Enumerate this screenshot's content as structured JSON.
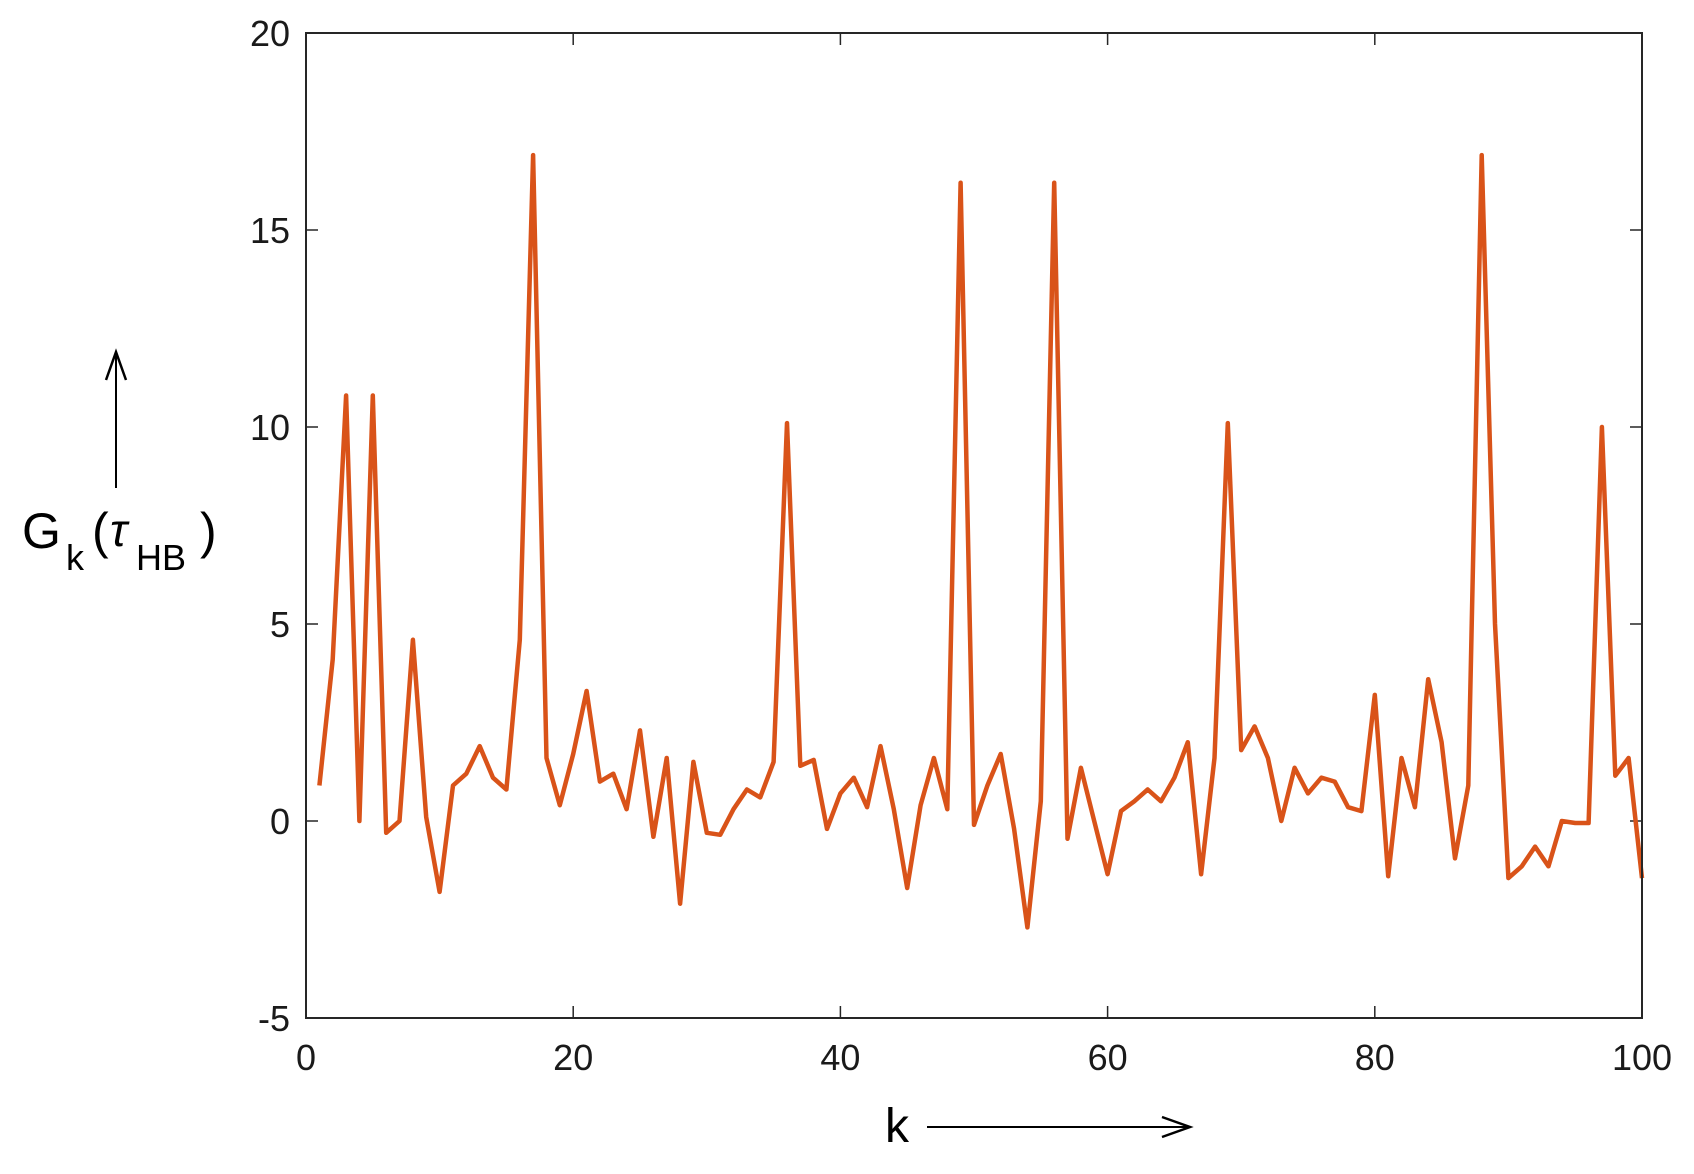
{
  "chart_data": {
    "type": "line",
    "xlabel": "k",
    "ylabel": {
      "main": "G",
      "sub": "k",
      "open": "(",
      "greek": "τ",
      "greek_sub": "HB",
      "close": ")"
    },
    "xlim": [
      0,
      100
    ],
    "ylim": [
      -5,
      20
    ],
    "x_ticks": [
      0,
      20,
      40,
      60,
      80,
      100
    ],
    "x_tick_labels": [
      "0",
      "20",
      "40",
      "60",
      "80",
      "100"
    ],
    "y_ticks": [
      -5,
      0,
      5,
      10,
      15,
      20
    ],
    "y_tick_labels": [
      "-5",
      "0",
      "5",
      "10",
      "15",
      "20"
    ],
    "grid": false,
    "series": [
      {
        "color": "#d95319",
        "x": [
          1,
          2,
          3,
          4,
          5,
          6,
          7,
          8,
          9,
          10,
          11,
          12,
          13,
          14,
          15,
          16,
          17,
          18,
          19,
          20,
          21,
          22,
          23,
          24,
          25,
          26,
          27,
          28,
          29,
          30,
          31,
          32,
          33,
          34,
          35,
          36,
          37,
          38,
          39,
          40,
          41,
          42,
          43,
          44,
          45,
          46,
          47,
          48,
          49,
          50,
          51,
          52,
          53,
          54,
          55,
          56,
          57,
          58,
          59,
          60,
          61,
          62,
          63,
          64,
          65,
          66,
          67,
          68,
          69,
          70,
          71,
          72,
          73,
          74,
          75,
          76,
          77,
          78,
          79,
          80,
          81,
          82,
          83,
          84,
          85,
          86,
          87,
          88,
          89,
          90,
          91,
          92,
          93,
          94,
          95,
          96,
          97,
          98,
          99,
          100
        ],
        "values": [
          0.9,
          4.1,
          10.8,
          0.0,
          10.8,
          -0.3,
          0.0,
          4.6,
          0.1,
          -1.8,
          0.9,
          1.2,
          1.9,
          1.1,
          0.8,
          4.6,
          16.9,
          1.6,
          0.4,
          1.7,
          3.3,
          1.0,
          1.2,
          0.3,
          2.3,
          -0.4,
          1.6,
          -2.1,
          1.5,
          -0.3,
          -0.35,
          0.3,
          0.8,
          0.6,
          1.5,
          10.1,
          1.4,
          1.55,
          -0.2,
          0.7,
          1.1,
          0.35,
          1.9,
          0.3,
          -1.7,
          0.4,
          1.6,
          0.3,
          16.2,
          -0.1,
          0.9,
          1.7,
          -0.2,
          -2.7,
          0.5,
          16.2,
          -0.45,
          1.35,
          0.0,
          -1.35,
          0.25,
          0.5,
          0.8,
          0.5,
          1.1,
          2.0,
          -1.35,
          1.6,
          10.1,
          1.8,
          2.4,
          1.6,
          0.0,
          1.35,
          0.7,
          1.1,
          1.0,
          0.35,
          0.25,
          3.2,
          -1.4,
          1.6,
          0.35,
          3.6,
          2.0,
          -0.95,
          0.9,
          16.9,
          5.0,
          -1.45,
          -1.15,
          -0.65,
          -1.15,
          0.0,
          -0.05,
          -0.05,
          10.0,
          1.15,
          1.6,
          -1.45
        ]
      }
    ]
  }
}
